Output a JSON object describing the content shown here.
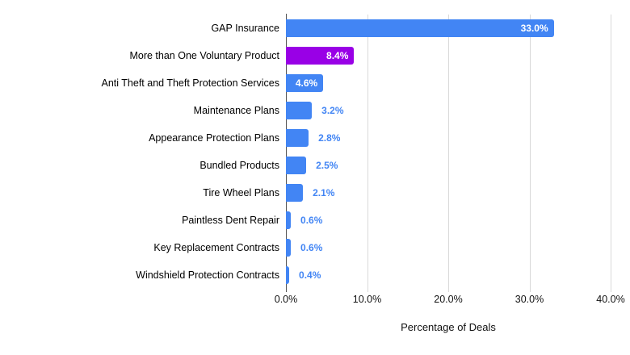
{
  "chart_data": {
    "type": "bar",
    "orientation": "horizontal",
    "title": "",
    "xlabel": "Percentage of Deals",
    "ylabel": "",
    "xlim": [
      0,
      40
    ],
    "grid": true,
    "x_ticks": [
      {
        "value": 0,
        "label": "0.0%"
      },
      {
        "value": 10,
        "label": "10.0%"
      },
      {
        "value": 20,
        "label": "20.0%"
      },
      {
        "value": 30,
        "label": "30.0%"
      },
      {
        "value": 40,
        "label": "40.0%"
      }
    ],
    "categories": [
      "GAP Insurance",
      "More than One Voluntary Product",
      "Anti Theft and Theft Protection Services",
      "Maintenance Plans",
      "Appearance Protection Plans",
      "Bundled Products",
      "Tire Wheel Plans",
      "Paintless Dent Repair",
      "Key Replacement Contracts",
      "Windshield Protection Contracts"
    ],
    "values": [
      33.0,
      8.4,
      4.6,
      3.2,
      2.8,
      2.5,
      2.1,
      0.6,
      0.6,
      0.4
    ],
    "value_labels": [
      "33.0%",
      "8.4%",
      "4.6%",
      "3.2%",
      "2.8%",
      "2.5%",
      "2.1%",
      "0.6%",
      "0.6%",
      "0.4%"
    ],
    "bar_colors": [
      "#4285F4",
      "#9900E6",
      "#4285F4",
      "#4285F4",
      "#4285F4",
      "#4285F4",
      "#4285F4",
      "#4285F4",
      "#4285F4",
      "#4285F4"
    ],
    "colors": {
      "bar_default": "#4285F4",
      "bar_highlight": "#9900E6",
      "value_label_inside": "#ffffff",
      "value_label_outside": "#4285F4",
      "gridline": "#d9d9d9",
      "axis_line": "#555555",
      "text": "#000000"
    },
    "inside_label_threshold": 4.0
  }
}
